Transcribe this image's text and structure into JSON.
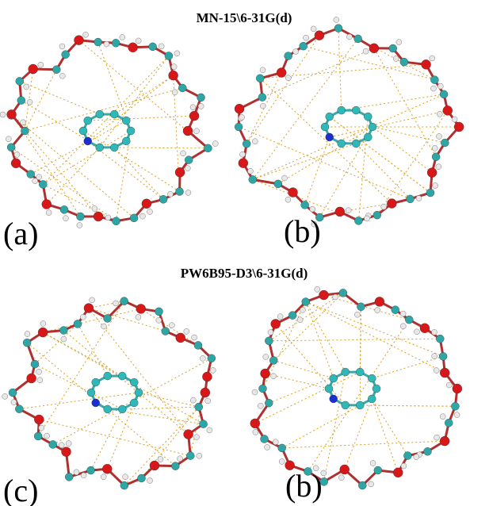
{
  "figure": {
    "sections": [
      {
        "title": "MN-15\\6-31G(d)",
        "panels": [
          "(a)",
          "(b)"
        ]
      },
      {
        "title": "PW6B95-D3\\6-31G(d)",
        "panels": [
          "(c)",
          "(b)"
        ]
      }
    ]
  }
}
